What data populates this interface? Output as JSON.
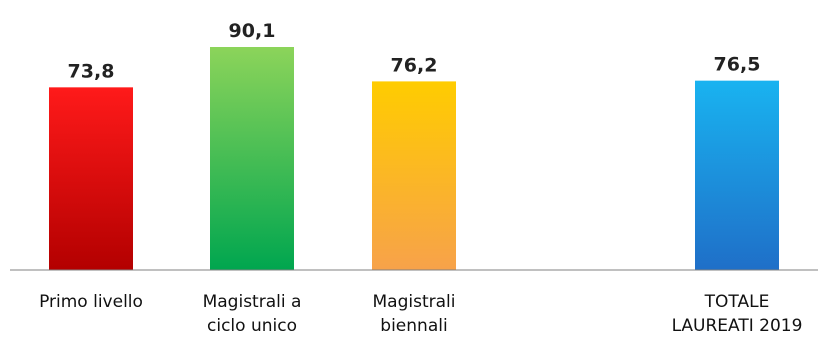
{
  "chart_data": {
    "type": "bar",
    "categories": [
      [
        "Primo livello"
      ],
      [
        "Magistrali a",
        "ciclo unico"
      ],
      [
        "Magistrali",
        "biennali"
      ],
      [
        "TOTALE",
        "LAUREATI 2019"
      ]
    ],
    "values": [
      73.8,
      90.1,
      76.2,
      76.5
    ],
    "value_labels": [
      "73,8",
      "90,1",
      "76,2",
      "76,5"
    ],
    "bar_colors": [
      [
        "#ff1a1a",
        "#b30000"
      ],
      [
        "#8cd45a",
        "#00a64f"
      ],
      [
        "#ffcc00",
        "#f7a24a"
      ],
      [
        "#19b3f0",
        "#1f6fc8"
      ]
    ],
    "axis_color": "#808080",
    "ylim": [
      0,
      90.1
    ],
    "title": "",
    "xlabel": "",
    "ylabel": "",
    "grid": false,
    "legend": "none"
  }
}
